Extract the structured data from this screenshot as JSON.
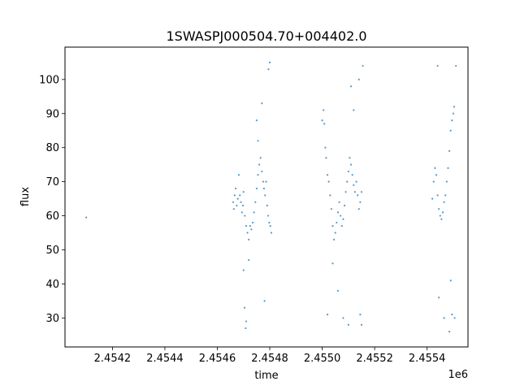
{
  "chart_data": {
    "type": "scatter",
    "title": "1SWASPJ000504.70+004402.0",
    "xlabel": "time",
    "ylabel": "flux",
    "x_offset_label": "1e6",
    "xlim": [
      2454019,
      2455556
    ],
    "ylim": [
      21.5,
      109.5
    ],
    "grid": false,
    "legend": "none",
    "marker_color": "#1f77b4",
    "x_ticks": [
      2454200,
      2454400,
      2454600,
      2454800,
      2455000,
      2455200,
      2455400
    ],
    "x_tick_labels": [
      "2.4542",
      "2.4544",
      "2.4546",
      "2.4548",
      "2.4550",
      "2.4552",
      "2.4554"
    ],
    "y_ticks": [
      30,
      40,
      50,
      60,
      70,
      80,
      90,
      100
    ],
    "y_tick_labels": [
      "30",
      "40",
      "50",
      "60",
      "70",
      "80",
      "90",
      "100"
    ],
    "series": [
      {
        "points": [
          [
            2454100,
            59.5
          ],
          [
            2454660,
            64
          ],
          [
            2454663,
            62
          ],
          [
            2454666,
            66
          ],
          [
            2454670,
            68
          ],
          [
            2454674,
            63
          ],
          [
            2454678,
            65
          ],
          [
            2454682,
            72
          ],
          [
            2454686,
            66
          ],
          [
            2454690,
            64
          ],
          [
            2454694,
            61
          ],
          [
            2454698,
            63
          ],
          [
            2454700,
            67
          ],
          [
            2454705,
            60
          ],
          [
            2454710,
            57
          ],
          [
            2454715,
            55
          ],
          [
            2454720,
            53
          ],
          [
            2454725,
            57
          ],
          [
            2454730,
            56
          ],
          [
            2454735,
            58
          ],
          [
            2454740,
            61
          ],
          [
            2454745,
            64
          ],
          [
            2454750,
            68
          ],
          [
            2454755,
            72
          ],
          [
            2454760,
            75
          ],
          [
            2454765,
            77
          ],
          [
            2454770,
            73
          ],
          [
            2454775,
            70
          ],
          [
            2454778,
            68
          ],
          [
            2454782,
            66
          ],
          [
            2454786,
            70
          ],
          [
            2454790,
            63
          ],
          [
            2454794,
            60
          ],
          [
            2454798,
            58
          ],
          [
            2454802,
            57
          ],
          [
            2454806,
            55
          ],
          [
            2454700,
            44
          ],
          [
            2454704,
            33
          ],
          [
            2454710,
            29
          ],
          [
            2454708,
            27
          ],
          [
            2454720,
            47
          ],
          [
            2454750,
            88
          ],
          [
            2454755,
            82
          ],
          [
            2454770,
            93
          ],
          [
            2454780,
            35
          ],
          [
            2454795,
            103
          ],
          [
            2454800,
            105
          ],
          [
            2455000,
            88
          ],
          [
            2455005,
            91
          ],
          [
            2455008,
            87
          ],
          [
            2455012,
            80
          ],
          [
            2455015,
            77
          ],
          [
            2455020,
            72
          ],
          [
            2455025,
            70
          ],
          [
            2455030,
            66
          ],
          [
            2455035,
            62
          ],
          [
            2455040,
            57
          ],
          [
            2455045,
            53
          ],
          [
            2455050,
            55
          ],
          [
            2455055,
            58
          ],
          [
            2455060,
            61
          ],
          [
            2455065,
            64
          ],
          [
            2455070,
            60
          ],
          [
            2455075,
            57
          ],
          [
            2455080,
            59
          ],
          [
            2455085,
            63
          ],
          [
            2455090,
            67
          ],
          [
            2455095,
            70
          ],
          [
            2455100,
            73
          ],
          [
            2455105,
            77
          ],
          [
            2455110,
            75
          ],
          [
            2455115,
            72
          ],
          [
            2455120,
            69
          ],
          [
            2455125,
            67
          ],
          [
            2455130,
            70
          ],
          [
            2455135,
            66
          ],
          [
            2455140,
            62
          ],
          [
            2455145,
            64
          ],
          [
            2455150,
            67
          ],
          [
            2455020,
            31
          ],
          [
            2455040,
            46
          ],
          [
            2455060,
            38
          ],
          [
            2455080,
            30
          ],
          [
            2455100,
            28
          ],
          [
            2455110,
            98
          ],
          [
            2455120,
            91
          ],
          [
            2455140,
            100
          ],
          [
            2455145,
            31
          ],
          [
            2455150,
            28
          ],
          [
            2455155,
            104
          ],
          [
            2455420,
            65
          ],
          [
            2455425,
            70
          ],
          [
            2455430,
            74
          ],
          [
            2455435,
            72
          ],
          [
            2455440,
            66
          ],
          [
            2455445,
            62
          ],
          [
            2455450,
            60
          ],
          [
            2455455,
            59
          ],
          [
            2455460,
            61
          ],
          [
            2455465,
            64
          ],
          [
            2455470,
            66
          ],
          [
            2455475,
            70
          ],
          [
            2455480,
            74
          ],
          [
            2455485,
            79
          ],
          [
            2455490,
            85
          ],
          [
            2455495,
            88
          ],
          [
            2455500,
            90
          ],
          [
            2455503,
            92
          ],
          [
            2455440,
            104
          ],
          [
            2455445,
            36
          ],
          [
            2455465,
            30
          ],
          [
            2455485,
            26
          ],
          [
            2455490,
            41
          ],
          [
            2455495,
            31
          ],
          [
            2455505,
            30
          ],
          [
            2455510,
            104
          ]
        ]
      }
    ]
  }
}
